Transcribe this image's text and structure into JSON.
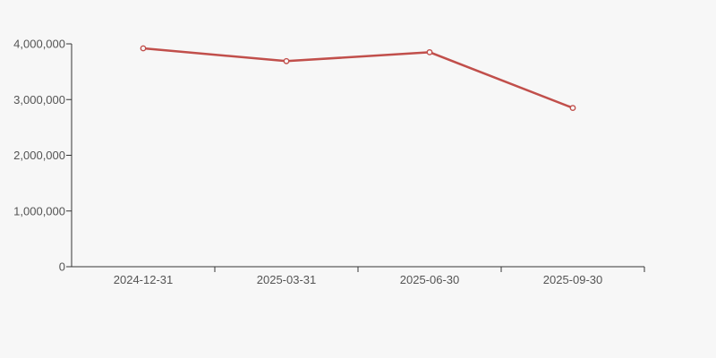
{
  "canvas": {
    "background_color": "#f7f7f7",
    "axis_color": "#343434",
    "label_color": "#545454"
  },
  "chart_data": {
    "type": "line",
    "title": "",
    "xlabel": "",
    "ylabel": "",
    "categories": [
      "2024-12-31",
      "2025-03-31",
      "2025-06-30",
      "2025-09-30"
    ],
    "series": [
      {
        "name": "value",
        "values": [
          3920000,
          3690000,
          3850000,
          2850000
        ],
        "line_color": "#c14f4b",
        "marker": "open-circle",
        "marker_fill": "#f7f7f7"
      }
    ],
    "ylim": [
      0,
      4000000
    ],
    "y_ticks": [
      0,
      1000000,
      2000000,
      3000000,
      4000000
    ],
    "y_tick_labels": [
      "0",
      "1,000,000",
      "2,000,000",
      "3,000,000",
      "4,000,000"
    ],
    "grid": false,
    "legend_position": "none"
  }
}
